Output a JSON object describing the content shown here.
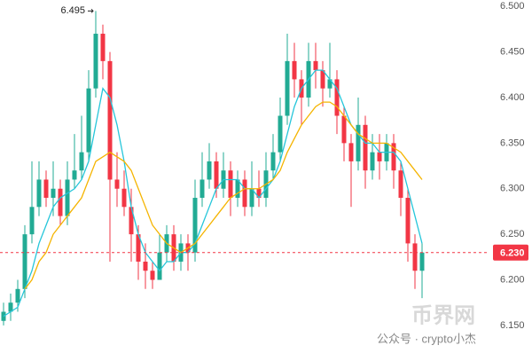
{
  "chart_data": {
    "type": "candlestick",
    "open": [
      6.155,
      6.165,
      6.175,
      6.19,
      6.25,
      6.28,
      6.31,
      6.29,
      6.3,
      6.27,
      6.31,
      6.32,
      6.34,
      6.41,
      6.47,
      6.44,
      6.31,
      6.3,
      6.28,
      6.25,
      6.22,
      6.21,
      6.2,
      6.23,
      6.25,
      6.22,
      6.24,
      6.23,
      6.29,
      6.31,
      6.33,
      6.3,
      6.32,
      6.29,
      6.31,
      6.28,
      6.3,
      6.29,
      6.32,
      6.34,
      6.38,
      6.44,
      6.42,
      6.4,
      6.44,
      6.43,
      6.41,
      6.42,
      6.38,
      6.35,
      6.33,
      6.37,
      6.32,
      6.34,
      6.33,
      6.35,
      6.32,
      6.29,
      6.24,
      6.21
    ],
    "high": [
      6.175,
      6.185,
      6.2,
      6.26,
      6.33,
      6.33,
      6.32,
      6.33,
      6.31,
      6.33,
      6.36,
      6.38,
      6.43,
      6.495,
      6.48,
      6.45,
      6.34,
      6.32,
      6.3,
      6.26,
      6.24,
      6.22,
      6.25,
      6.26,
      6.26,
      6.25,
      6.25,
      6.31,
      6.34,
      6.35,
      6.34,
      6.34,
      6.33,
      6.32,
      6.32,
      6.33,
      6.32,
      6.34,
      6.36,
      6.4,
      6.47,
      6.46,
      6.43,
      6.46,
      6.46,
      6.44,
      6.46,
      6.43,
      6.39,
      6.36,
      6.4,
      6.38,
      6.36,
      6.36,
      6.36,
      6.36,
      6.33,
      6.3,
      6.25,
      6.24
    ],
    "low": [
      6.15,
      6.155,
      6.165,
      6.18,
      6.24,
      6.27,
      6.28,
      6.27,
      6.26,
      6.26,
      6.3,
      6.31,
      6.33,
      6.4,
      6.42,
      6.22,
      6.28,
      6.27,
      6.22,
      6.2,
      6.19,
      6.19,
      6.2,
      6.22,
      6.21,
      6.21,
      6.21,
      6.22,
      6.28,
      6.3,
      6.29,
      6.29,
      6.27,
      6.28,
      6.27,
      6.27,
      6.28,
      6.28,
      6.31,
      6.33,
      6.37,
      6.4,
      6.37,
      6.39,
      6.41,
      6.39,
      6.4,
      6.36,
      6.33,
      6.28,
      6.32,
      6.3,
      6.31,
      6.31,
      6.32,
      6.3,
      6.27,
      6.22,
      6.19,
      6.18
    ],
    "close": [
      6.165,
      6.175,
      6.19,
      6.25,
      6.28,
      6.31,
      6.29,
      6.3,
      6.27,
      6.31,
      6.32,
      6.34,
      6.41,
      6.47,
      6.44,
      6.31,
      6.3,
      6.28,
      6.25,
      6.22,
      6.21,
      6.2,
      6.23,
      6.25,
      6.22,
      6.24,
      6.23,
      6.29,
      6.31,
      6.33,
      6.3,
      6.32,
      6.29,
      6.31,
      6.28,
      6.3,
      6.29,
      6.32,
      6.34,
      6.38,
      6.44,
      6.42,
      6.4,
      6.44,
      6.43,
      6.41,
      6.42,
      6.38,
      6.35,
      6.33,
      6.37,
      6.32,
      6.34,
      6.33,
      6.35,
      6.32,
      6.29,
      6.24,
      6.21,
      6.23
    ],
    "up_color": "#22ab94",
    "down_color": "#f23645",
    "lines": [
      {
        "color": "#26c6da",
        "values": [
          6.16,
          6.165,
          6.17,
          6.19,
          6.21,
          6.24,
          6.26,
          6.28,
          6.29,
          6.295,
          6.3,
          6.31,
          6.33,
          6.37,
          6.41,
          6.4,
          6.37,
          6.33,
          6.28,
          6.25,
          6.23,
          6.22,
          6.21,
          6.22,
          6.22,
          6.23,
          6.23,
          6.24,
          6.26,
          6.28,
          6.3,
          6.31,
          6.31,
          6.31,
          6.3,
          6.3,
          6.29,
          6.3,
          6.31,
          6.33,
          6.36,
          6.39,
          6.41,
          6.42,
          6.43,
          6.43,
          6.42,
          6.41,
          6.39,
          6.37,
          6.36,
          6.35,
          6.35,
          6.34,
          6.34,
          6.34,
          6.33,
          6.3,
          6.27,
          6.24
        ]
      },
      {
        "color": "#f5b400",
        "values": [
          null,
          null,
          null,
          6.19,
          6.2,
          6.22,
          6.23,
          6.25,
          6.26,
          6.27,
          6.28,
          6.29,
          6.31,
          6.33,
          6.335,
          6.34,
          6.335,
          6.33,
          6.32,
          6.3,
          6.28,
          6.26,
          6.25,
          6.24,
          6.235,
          6.23,
          6.235,
          6.24,
          6.25,
          6.26,
          6.27,
          6.28,
          6.29,
          6.295,
          6.3,
          6.3,
          6.3,
          6.305,
          6.31,
          6.32,
          6.34,
          6.355,
          6.37,
          6.38,
          6.39,
          6.395,
          6.395,
          6.39,
          6.38,
          6.37,
          6.36,
          6.355,
          6.35,
          6.35,
          6.35,
          6.345,
          6.34,
          6.33,
          6.32,
          6.31
        ]
      }
    ],
    "ylim": [
      6.111,
      6.507
    ],
    "yticks": [
      {
        "value": 6.15,
        "label": "6.150"
      },
      {
        "value": 6.2,
        "label": "6.200"
      },
      {
        "value": 6.25,
        "label": "6.250"
      },
      {
        "value": 6.3,
        "label": "6.300"
      },
      {
        "value": 6.35,
        "label": "6.350"
      },
      {
        "value": 6.4,
        "label": "6.400"
      },
      {
        "value": 6.45,
        "label": "6.450"
      },
      {
        "value": 6.5,
        "label": "6.500"
      }
    ],
    "current_price": {
      "value": 6.23,
      "label": "6.230"
    },
    "high_marker": {
      "value": 6.495,
      "label": "6.495"
    },
    "watermarks": [
      "币界网",
      "公众号 · crypto小杰"
    ]
  }
}
